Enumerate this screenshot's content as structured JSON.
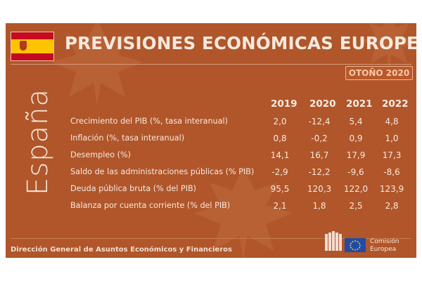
{
  "header": {
    "title": "PREVISIONES ECONÓMICAS EUROPEAS",
    "badge": "OTOÑO 2020",
    "country": "España"
  },
  "table": {
    "years": [
      "2019",
      "2020",
      "2021",
      "2022"
    ],
    "rows": [
      {
        "label": "Crecimiento del PIB (%, tasa interanual)",
        "values": [
          "2,0",
          "-12,4",
          "5,4",
          "4,8"
        ]
      },
      {
        "label": "Inflación (%, tasa interanual)",
        "values": [
          "0,8",
          "-0,2",
          "0,9",
          "1,0"
        ]
      },
      {
        "label": "Desempleo (%)",
        "values": [
          "14,1",
          "16,7",
          "17,9",
          "17,3"
        ]
      },
      {
        "label": "Saldo de las administraciones públicas (% PIB)",
        "values": [
          "-2,9",
          "-12,2",
          "-9,6",
          "-8,6"
        ]
      },
      {
        "label": "Deuda pública bruta (% del PIB)",
        "values": [
          "95,5",
          "120,3",
          "122,0",
          "123,9"
        ]
      },
      {
        "label": "Balanza por cuenta corriente (% del PIB)",
        "values": [
          "2,1",
          "1,8",
          "2,5",
          "2,8"
        ]
      }
    ]
  },
  "footer": {
    "directorate": "Dirección General de Asuntos Económicos y Financieros",
    "logo_line1": "Comisión",
    "logo_line2": "Europea"
  },
  "colors": {
    "background": "#b0562a",
    "flag_red": "#c60b1e",
    "flag_yellow": "#ffc400",
    "eu_blue": "#214ba5"
  },
  "icons": [
    "spain-flag-icon",
    "leaf-watermark-icon",
    "european-commission-logo-icon"
  ]
}
